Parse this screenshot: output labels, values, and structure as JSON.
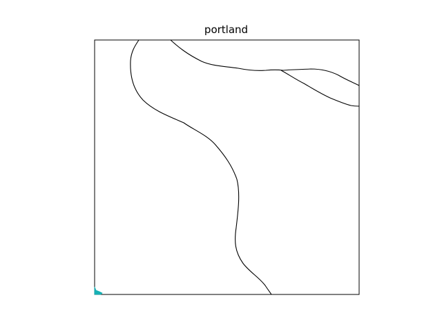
{
  "title": "portland",
  "colors": {
    "background": "#ffffff",
    "axes_frame": "#000000",
    "river_lines": "#000000",
    "marker": "#17b1b5"
  },
  "map": {
    "layers": [
      {
        "name": "river-centerline-west",
        "type": "line",
        "color": "#000000"
      },
      {
        "name": "river-channel-north",
        "type": "line",
        "color": "#000000"
      },
      {
        "name": "river-channel-branch",
        "type": "line",
        "color": "#000000"
      }
    ],
    "marker": {
      "name": "cyan-marker",
      "type": "patch",
      "color": "#17b1b5"
    }
  }
}
